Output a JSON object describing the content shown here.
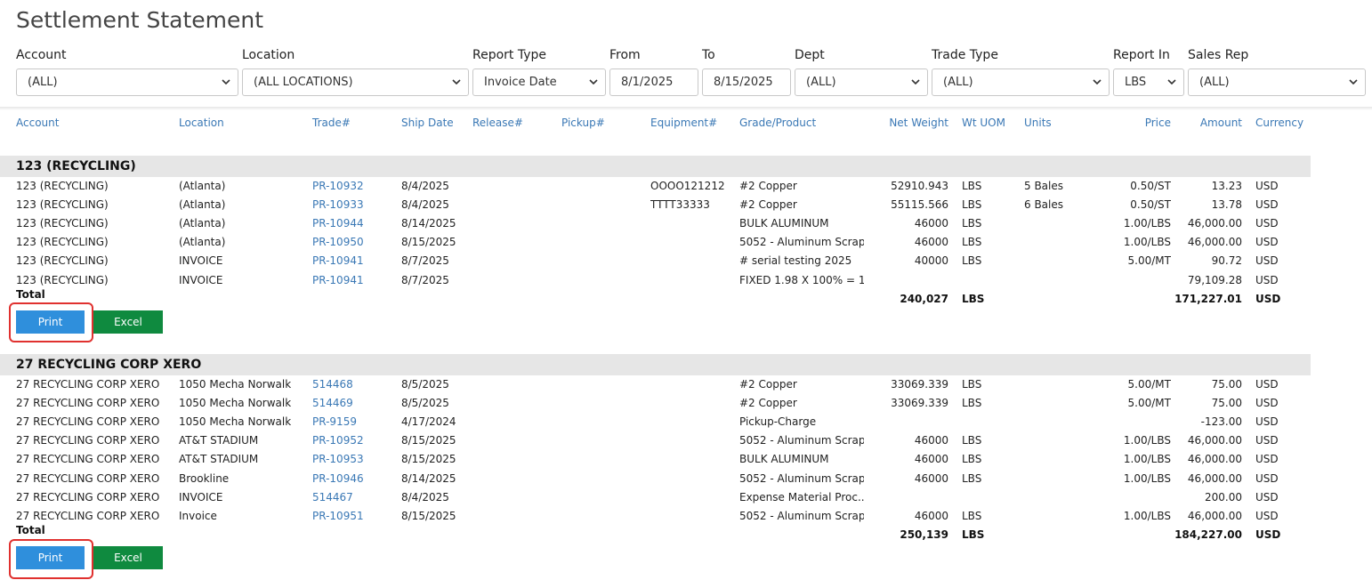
{
  "page": {
    "title": "Settlement Statement"
  },
  "filters": [
    {
      "label": "Account",
      "value": "(ALL)"
    },
    {
      "label": "Location",
      "value": "(ALL LOCATIONS)"
    },
    {
      "label": "Report Type",
      "value": "Invoice Date"
    },
    {
      "label": "From",
      "value": "8/1/2025"
    },
    {
      "label": "To",
      "value": "8/15/2025"
    },
    {
      "label": "Dept",
      "value": "(ALL)"
    },
    {
      "label": "Trade Type",
      "value": "(ALL)"
    },
    {
      "label": "Report In",
      "value": "LBS"
    },
    {
      "label": "Sales Rep",
      "value": "(ALL)"
    }
  ],
  "columns": [
    "Account",
    "Location",
    "Trade#",
    "Ship Date",
    "Release#",
    "Pickup#",
    "Equipment#",
    "Grade/Product",
    "Net Weight",
    "Wt UOM",
    "Units",
    "Price",
    "Amount",
    "Currency"
  ],
  "groups": [
    {
      "title": "123 (RECYCLING)",
      "rows": [
        {
          "account": "123 (RECYCLING)",
          "location": "(Atlanta)",
          "trade": "PR-10932",
          "ship": "8/4/2025",
          "release": "",
          "pickup": "",
          "equipment": "OOOO121212",
          "grade": "#2 Copper",
          "net": "52910.943",
          "uom": "LBS",
          "units": "5 Bales",
          "price": "0.50/ST",
          "amount": "13.23",
          "currency": "USD"
        },
        {
          "account": "123 (RECYCLING)",
          "location": "(Atlanta)",
          "trade": "PR-10933",
          "ship": "8/4/2025",
          "release": "",
          "pickup": "",
          "equipment": "TTTT33333",
          "grade": "#2 Copper",
          "net": "55115.566",
          "uom": "LBS",
          "units": "6 Bales",
          "price": "0.50/ST",
          "amount": "13.78",
          "currency": "USD"
        },
        {
          "account": "123 (RECYCLING)",
          "location": "(Atlanta)",
          "trade": "PR-10944",
          "ship": "8/14/2025",
          "release": "",
          "pickup": "",
          "equipment": "",
          "grade": "BULK ALUMINUM",
          "net": "46000",
          "uom": "LBS",
          "units": "",
          "price": "1.00/LBS",
          "amount": "46,000.00",
          "currency": "USD"
        },
        {
          "account": "123 (RECYCLING)",
          "location": "(Atlanta)",
          "trade": "PR-10950",
          "ship": "8/15/2025",
          "release": "",
          "pickup": "",
          "equipment": "",
          "grade": "5052 - Aluminum Scrap",
          "net": "46000",
          "uom": "LBS",
          "units": "",
          "price": "1.00/LBS",
          "amount": "46,000.00",
          "currency": "USD"
        },
        {
          "account": "123 (RECYCLING)",
          "location": "INVOICE",
          "trade": "PR-10941",
          "ship": "8/7/2025",
          "release": "",
          "pickup": "",
          "equipment": "",
          "grade": "# serial testing 2025",
          "net": "40000",
          "uom": "LBS",
          "units": "",
          "price": "5.00/MT",
          "amount": "90.72",
          "currency": "USD"
        },
        {
          "account": "123 (RECYCLING)",
          "location": "INVOICE",
          "trade": "PR-10941",
          "ship": "8/7/2025",
          "release": "",
          "pickup": "",
          "equipment": "",
          "grade": "FIXED 1.98 X 100% = 1...",
          "net": "",
          "uom": "",
          "units": "",
          "price": "",
          "amount": "79,109.28",
          "currency": "USD"
        }
      ],
      "total": {
        "label": "Total",
        "net": "240,027",
        "uom": "LBS",
        "amount": "171,227.01",
        "currency": "USD"
      },
      "print_label": "Print",
      "excel_label": "Excel"
    },
    {
      "title": "27 RECYCLING CORP XERO",
      "rows": [
        {
          "account": "27 RECYCLING CORP XERO",
          "location": "1050 Mecha Norwalk",
          "trade": "514468",
          "ship": "8/5/2025",
          "release": "",
          "pickup": "",
          "equipment": "",
          "grade": "#2 Copper",
          "net": "33069.339",
          "uom": "LBS",
          "units": "",
          "price": "5.00/MT",
          "amount": "75.00",
          "currency": "USD"
        },
        {
          "account": "27 RECYCLING CORP XERO",
          "location": "1050 Mecha Norwalk",
          "trade": "514469",
          "ship": "8/5/2025",
          "release": "",
          "pickup": "",
          "equipment": "",
          "grade": "#2 Copper",
          "net": "33069.339",
          "uom": "LBS",
          "units": "",
          "price": "5.00/MT",
          "amount": "75.00",
          "currency": "USD"
        },
        {
          "account": "27 RECYCLING CORP XERO",
          "location": "1050 Mecha Norwalk",
          "trade": "PR-9159",
          "ship": "4/17/2024",
          "release": "",
          "pickup": "",
          "equipment": "",
          "grade": "Pickup-Charge",
          "net": "",
          "uom": "",
          "units": "",
          "price": "",
          "amount": "-123.00",
          "currency": "USD"
        },
        {
          "account": "27 RECYCLING CORP XERO",
          "location": "AT&T STADIUM",
          "trade": "PR-10952",
          "ship": "8/15/2025",
          "release": "",
          "pickup": "",
          "equipment": "",
          "grade": "5052 - Aluminum Scrap",
          "net": "46000",
          "uom": "LBS",
          "units": "",
          "price": "1.00/LBS",
          "amount": "46,000.00",
          "currency": "USD"
        },
        {
          "account": "27 RECYCLING CORP XERO",
          "location": "AT&T STADIUM",
          "trade": "PR-10953",
          "ship": "8/15/2025",
          "release": "",
          "pickup": "",
          "equipment": "",
          "grade": "BULK ALUMINUM",
          "net": "46000",
          "uom": "LBS",
          "units": "",
          "price": "1.00/LBS",
          "amount": "46,000.00",
          "currency": "USD"
        },
        {
          "account": "27 RECYCLING CORP XERO",
          "location": "Brookline",
          "trade": "PR-10946",
          "ship": "8/14/2025",
          "release": "",
          "pickup": "",
          "equipment": "",
          "grade": "5052 - Aluminum Scrap",
          "net": "46000",
          "uom": "LBS",
          "units": "",
          "price": "1.00/LBS",
          "amount": "46,000.00",
          "currency": "USD"
        },
        {
          "account": "27 RECYCLING CORP XERO",
          "location": "INVOICE",
          "trade": "514467",
          "ship": "8/4/2025",
          "release": "",
          "pickup": "",
          "equipment": "",
          "grade": "Expense Material Proc...",
          "net": "",
          "uom": "",
          "units": "",
          "price": "",
          "amount": "200.00",
          "currency": "USD"
        },
        {
          "account": "27 RECYCLING CORP XERO",
          "location": "Invoice",
          "trade": "PR-10951",
          "ship": "8/15/2025",
          "release": "",
          "pickup": "",
          "equipment": "",
          "grade": "5052 - Aluminum Scrap",
          "net": "46000",
          "uom": "LBS",
          "units": "",
          "price": "1.00/LBS",
          "amount": "46,000.00",
          "currency": "USD"
        }
      ],
      "total": {
        "label": "Total",
        "net": "250,139",
        "uom": "LBS",
        "amount": "184,227.00",
        "currency": "USD"
      },
      "print_label": "Print",
      "excel_label": "Excel"
    }
  ],
  "icons": {
    "dropdown": "chevron-down-icon"
  },
  "colors": {
    "link": "#3a78b5",
    "print": "#2f8fdc",
    "excel": "#0f8a3f",
    "highlight": "#e0312f",
    "group_bar": "#e6e6e6"
  }
}
